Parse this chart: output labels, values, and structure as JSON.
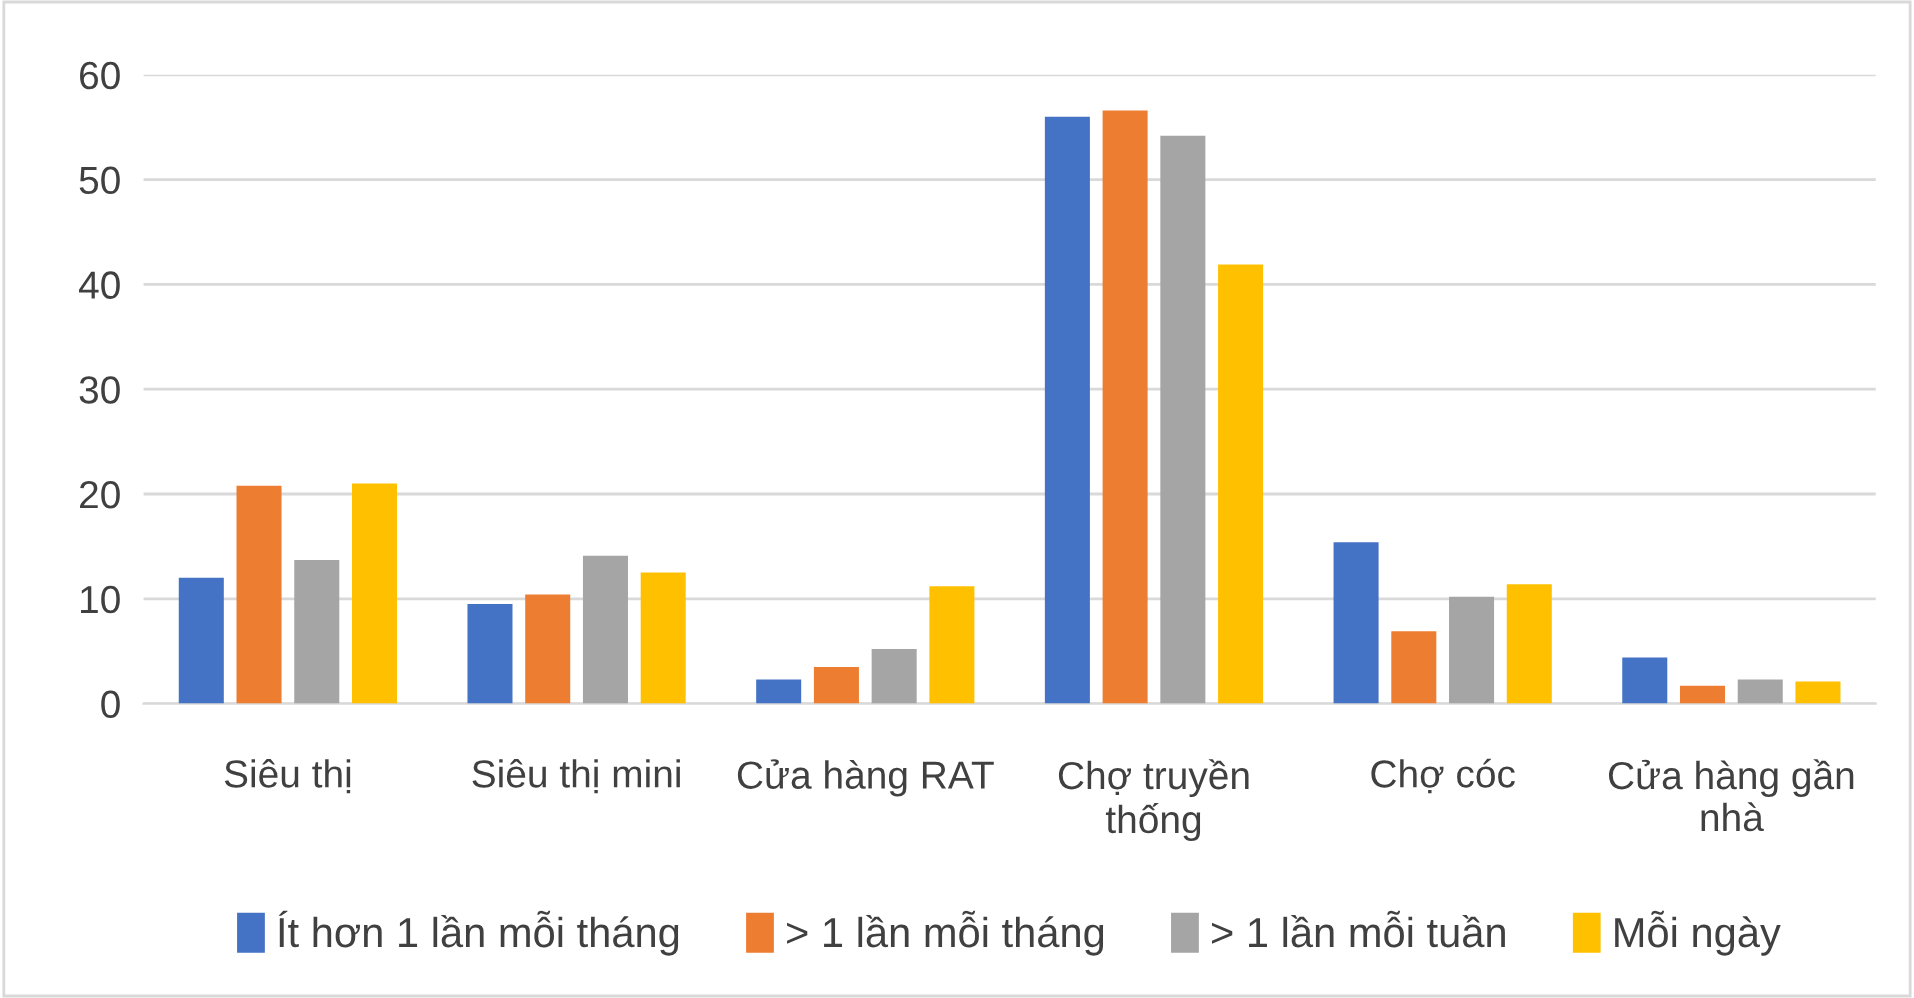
{
  "chart_data": {
    "type": "bar",
    "categories": [
      "Siêu thị",
      "Siêu thị mini",
      "Cửa hàng RAT",
      "Chợ truyền thống",
      "Chợ cóc",
      "Cửa hàng gần nhà"
    ],
    "series": [
      {
        "name": "Ít hơn 1 lần mỗi tháng",
        "color": "#4472c4",
        "values": [
          12.0,
          9.5,
          2.3,
          56.0,
          15.4,
          4.4
        ]
      },
      {
        "name": "> 1 lần mỗi tháng",
        "color": "#ed7d31",
        "values": [
          20.8,
          10.4,
          3.5,
          56.6,
          6.9,
          1.7
        ]
      },
      {
        "name": "> 1 lần mỗi tuần",
        "color": "#a5a5a5",
        "values": [
          13.7,
          14.1,
          5.2,
          54.2,
          10.2,
          2.3
        ]
      },
      {
        "name": "Mỗi ngày",
        "color": "#ffc000",
        "values": [
          21.0,
          12.5,
          11.2,
          41.9,
          11.4,
          2.1
        ]
      }
    ],
    "ylim": [
      0,
      60
    ],
    "yticks": [
      0,
      10,
      20,
      30,
      40,
      50,
      60
    ],
    "grid": "y",
    "legend": "bottom"
  }
}
